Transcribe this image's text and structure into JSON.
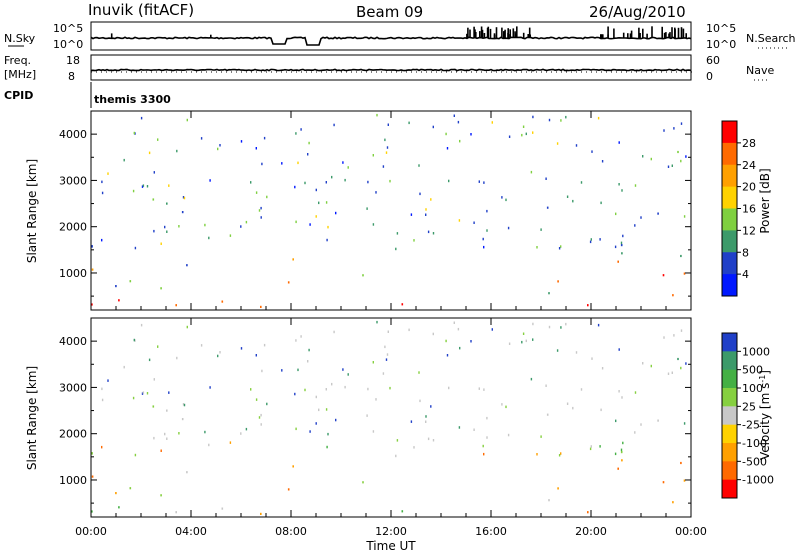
{
  "header": {
    "station": "Inuvik (fitACF)",
    "beam": "Beam 09",
    "date": "26/Aug/2010"
  },
  "top_panels": {
    "nsky_label": "N.Sky",
    "nsearch_label": "N.Search",
    "nsky_ticks": [
      "10^5",
      "10^0"
    ],
    "nsearch_ticks": [
      "10^5",
      "10^0"
    ],
    "freq_label_1": "Freq.",
    "freq_label_2": "[MHz]",
    "freq_ticks": [
      "18",
      "8"
    ],
    "nave_label": "Nave",
    "nave_ticks": [
      "60",
      "0"
    ],
    "cpid_label": "CPID",
    "cpid_value": "themis 3300"
  },
  "chart_data": [
    {
      "type": "heatmap",
      "name": "power",
      "ylabel": "Slant Range [km]",
      "yticks": [
        1000,
        2000,
        3000,
        4000
      ],
      "ylim": [
        200,
        4500
      ],
      "xlim": [
        0,
        24
      ],
      "colorbar_label": "Power [dB]",
      "colorbar_ticks": [
        "28",
        "24",
        "20",
        "16",
        "12",
        "8",
        "4"
      ],
      "colors": [
        "#ff0000",
        "#ff6a00",
        "#ffa000",
        "#ffd200",
        "#7fd040",
        "#3c9a6a",
        "#2040c8",
        "#0018ff"
      ]
    },
    {
      "type": "heatmap",
      "name": "velocity",
      "ylabel": "Slant Range [km]",
      "yticks": [
        1000,
        2000,
        3000,
        4000
      ],
      "ylim": [
        200,
        4500
      ],
      "xlim": [
        0,
        24
      ],
      "xlabel": "Time UT",
      "xticks": [
        "00:00",
        "04:00",
        "08:00",
        "12:00",
        "16:00",
        "20:00",
        "00:00"
      ],
      "colorbar_label": "Velocity [m s",
      "colorbar_label_sup": "-1",
      "colorbar_label_end": "]",
      "colorbar_ticks": [
        "1000",
        "500",
        "100",
        "25",
        "-25",
        "-100",
        "-500",
        "-1000"
      ],
      "colors": [
        "#2040c8",
        "#3c9a6a",
        "#44b044",
        "#86d040",
        "#c8c8c8",
        "#ffd200",
        "#ffa000",
        "#ff6a00",
        "#ff0000"
      ]
    }
  ]
}
